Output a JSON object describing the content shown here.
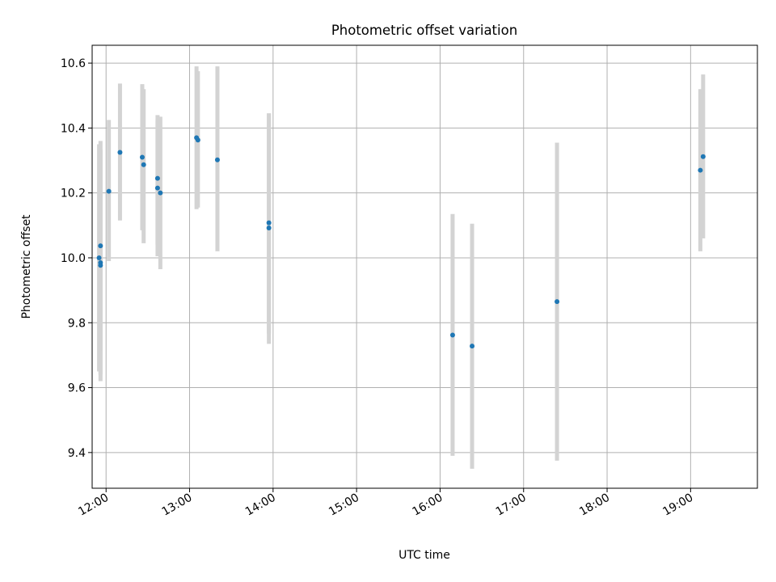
{
  "chart_data": {
    "type": "scatter",
    "title": "Photometric offset variation",
    "xlabel": "UTC time",
    "ylabel": "Photometric offset",
    "xlim": [
      "11:50",
      "19:48"
    ],
    "ylim": [
      9.29,
      10.655
    ],
    "xticks": [
      "12:00",
      "13:00",
      "14:00",
      "15:00",
      "16:00",
      "17:00",
      "18:00",
      "19:00"
    ],
    "yticks": [
      "9.4",
      "9.6",
      "9.8",
      "10.0",
      "10.2",
      "10.4",
      "10.6"
    ],
    "grid": true,
    "colors": {
      "point": "#1f77b4",
      "errorbar": "#d3d3d3",
      "grid": "#b0b0b0"
    },
    "points": [
      {
        "x": "11:55",
        "y": 10.0,
        "ylo": 9.65,
        "yhi": 10.35
      },
      {
        "x": "11:56",
        "y": 10.037,
        "ylo": 9.715,
        "yhi": 10.36
      },
      {
        "x": "11:56",
        "y": 9.985,
        "ylo": 9.64,
        "yhi": 10.33
      },
      {
        "x": "11:56",
        "y": 9.977,
        "ylo": 9.62,
        "yhi": 10.335
      },
      {
        "x": "12:02",
        "y": 10.205,
        "ylo": 9.99,
        "yhi": 10.425
      },
      {
        "x": "12:10",
        "y": 10.325,
        "ylo": 10.115,
        "yhi": 10.537
      },
      {
        "x": "12:26",
        "y": 10.31,
        "ylo": 10.085,
        "yhi": 10.535
      },
      {
        "x": "12:27",
        "y": 10.287,
        "ylo": 10.045,
        "yhi": 10.52
      },
      {
        "x": "12:37",
        "y": 10.245,
        "ylo": 10.04,
        "yhi": 10.44
      },
      {
        "x": "12:37",
        "y": 10.215,
        "ylo": 10.005,
        "yhi": 10.425
      },
      {
        "x": "12:39",
        "y": 10.2,
        "ylo": 9.965,
        "yhi": 10.435
      },
      {
        "x": "13:05",
        "y": 10.37,
        "ylo": 10.15,
        "yhi": 10.59
      },
      {
        "x": "13:06",
        "y": 10.363,
        "ylo": 10.155,
        "yhi": 10.575
      },
      {
        "x": "13:20",
        "y": 10.302,
        "ylo": 10.02,
        "yhi": 10.59
      },
      {
        "x": "13:57",
        "y": 10.108,
        "ylo": 9.765,
        "yhi": 10.445
      },
      {
        "x": "13:57",
        "y": 10.092,
        "ylo": 9.735,
        "yhi": 10.445
      },
      {
        "x": "16:09",
        "y": 9.762,
        "ylo": 9.39,
        "yhi": 10.135
      },
      {
        "x": "16:23",
        "y": 9.728,
        "ylo": 9.35,
        "yhi": 10.105
      },
      {
        "x": "17:24",
        "y": 9.865,
        "ylo": 9.375,
        "yhi": 10.355
      },
      {
        "x": "19:07",
        "y": 10.27,
        "ylo": 10.02,
        "yhi": 10.52
      },
      {
        "x": "19:09",
        "y": 10.312,
        "ylo": 10.06,
        "yhi": 10.565
      }
    ]
  }
}
